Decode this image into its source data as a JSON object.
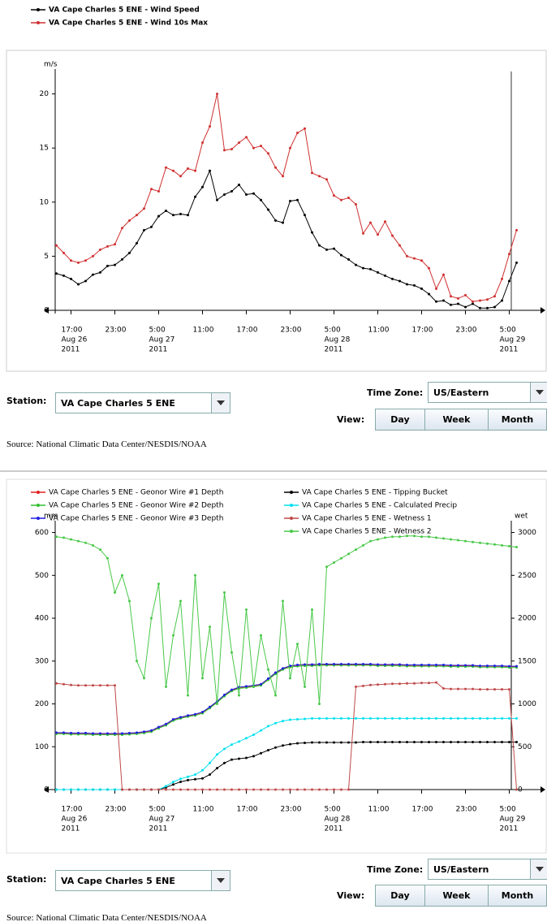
{
  "chart_data": [
    {
      "type": "line",
      "ylabel": "m/s",
      "x": [
        "2011-08-26T15:00",
        "2011-08-26T16:00",
        "2011-08-26T17:00",
        "2011-08-26T18:00",
        "2011-08-26T19:00",
        "2011-08-26T20:00",
        "2011-08-26T21:00",
        "2011-08-26T22:00",
        "2011-08-26T23:00",
        "2011-08-27T00:00",
        "2011-08-27T01:00",
        "2011-08-27T02:00",
        "2011-08-27T03:00",
        "2011-08-27T04:00",
        "2011-08-27T05:00",
        "2011-08-27T06:00",
        "2011-08-27T07:00",
        "2011-08-27T08:00",
        "2011-08-27T09:00",
        "2011-08-27T10:00",
        "2011-08-27T11:00",
        "2011-08-27T12:00",
        "2011-08-27T13:00",
        "2011-08-27T14:00",
        "2011-08-27T15:00",
        "2011-08-27T16:00",
        "2011-08-27T17:00",
        "2011-08-27T18:00",
        "2011-08-27T19:00",
        "2011-08-27T20:00",
        "2011-08-27T21:00",
        "2011-08-27T22:00",
        "2011-08-27T23:00",
        "2011-08-28T00:00",
        "2011-08-28T01:00",
        "2011-08-28T02:00",
        "2011-08-28T03:00",
        "2011-08-28T04:00",
        "2011-08-28T05:00",
        "2011-08-28T06:00",
        "2011-08-28T07:00",
        "2011-08-28T08:00",
        "2011-08-28T09:00",
        "2011-08-28T10:00",
        "2011-08-28T11:00",
        "2011-08-28T12:00",
        "2011-08-28T13:00",
        "2011-08-28T14:00",
        "2011-08-28T15:00",
        "2011-08-28T16:00",
        "2011-08-28T17:00",
        "2011-08-28T18:00",
        "2011-08-28T19:00",
        "2011-08-28T20:00",
        "2011-08-28T21:00",
        "2011-08-28T22:00",
        "2011-08-28T23:00",
        "2011-08-29T00:00",
        "2011-08-29T01:00",
        "2011-08-29T02:00",
        "2011-08-29T03:00",
        "2011-08-29T04:00",
        "2011-08-29T05:00",
        "2011-08-29T06:00"
      ],
      "series": [
        {
          "name": "VA Cape Charles 5 ENE - Wind Speed",
          "color": "#000000",
          "values": [
            3.4,
            3.2,
            2.9,
            2.4,
            2.7,
            3.3,
            3.5,
            4.1,
            4.2,
            4.7,
            5.3,
            6.2,
            7.4,
            7.7,
            8.7,
            9.2,
            8.8,
            8.9,
            8.8,
            10.5,
            11.4,
            12.9,
            10.2,
            10.7,
            11.0,
            11.6,
            10.7,
            10.8,
            10.2,
            9.3,
            8.3,
            8.1,
            10.1,
            10.2,
            8.8,
            7.2,
            6.0,
            5.6,
            5.7,
            5.1,
            4.7,
            4.2,
            3.9,
            3.8,
            3.5,
            3.2,
            2.9,
            2.7,
            2.4,
            2.3,
            2.0,
            1.5,
            0.8,
            0.9,
            0.5,
            0.6,
            0.3,
            0.6,
            0.2,
            0.2,
            0.3,
            0.9,
            2.7,
            4.4
          ]
        },
        {
          "name": "VA Cape Charles 5 ENE - Wind 10s Max",
          "color": "#d03030",
          "values": [
            6.0,
            5.3,
            4.6,
            4.4,
            4.6,
            5.0,
            5.6,
            5.9,
            6.1,
            7.6,
            8.3,
            8.8,
            9.4,
            11.2,
            11.0,
            13.2,
            12.9,
            12.4,
            13.1,
            12.9,
            15.5,
            17.0,
            20.0,
            14.8,
            14.9,
            15.5,
            16.0,
            15.0,
            15.2,
            14.5,
            13.2,
            12.4,
            15.0,
            16.4,
            16.8,
            12.7,
            12.4,
            12.1,
            10.6,
            10.2,
            10.4,
            9.8,
            7.1,
            8.1,
            7.0,
            8.2,
            6.9,
            6.0,
            5.0,
            4.8,
            4.6,
            3.9,
            2.0,
            3.3,
            1.3,
            1.1,
            1.4,
            0.8,
            0.9,
            1.0,
            1.3,
            2.9,
            5.2,
            7.4
          ]
        }
      ],
      "xlim": [
        "2011-08-26T14:50",
        "2011-08-29T09:30"
      ],
      "xticks": [
        {
          "value": "2011-08-26T17:00",
          "label": [
            "17:00",
            "Aug 26",
            "2011"
          ]
        },
        {
          "value": "2011-08-26T23:00",
          "label": [
            "23:00"
          ]
        },
        {
          "value": "2011-08-27T05:00",
          "label": [
            "5:00",
            "Aug 27",
            "2011"
          ]
        },
        {
          "value": "2011-08-27T11:00",
          "label": [
            "11:00"
          ]
        },
        {
          "value": "2011-08-27T17:00",
          "label": [
            "17:00"
          ]
        },
        {
          "value": "2011-08-27T23:00",
          "label": [
            "23:00"
          ]
        },
        {
          "value": "2011-08-28T05:00",
          "label": [
            "5:00",
            "Aug 28",
            "2011"
          ]
        },
        {
          "value": "2011-08-28T11:00",
          "label": [
            "11:00"
          ]
        },
        {
          "value": "2011-08-28T17:00",
          "label": [
            "17:00"
          ]
        },
        {
          "value": "2011-08-28T23:00",
          "label": [
            "23:00"
          ]
        },
        {
          "value": "2011-08-29T05:00",
          "label": [
            "5:00",
            "Aug 29",
            "2011"
          ]
        }
      ],
      "ylim": [
        0,
        22
      ],
      "yticks": [
        0,
        5,
        10,
        15,
        20
      ]
    },
    {
      "type": "line",
      "ylabel": "mm",
      "y2label": "wet",
      "x": [
        "2011-08-26T15:00",
        "2011-08-26T16:00",
        "2011-08-26T17:00",
        "2011-08-26T18:00",
        "2011-08-26T19:00",
        "2011-08-26T20:00",
        "2011-08-26T21:00",
        "2011-08-26T22:00",
        "2011-08-26T23:00",
        "2011-08-27T00:00",
        "2011-08-27T01:00",
        "2011-08-27T02:00",
        "2011-08-27T03:00",
        "2011-08-27T04:00",
        "2011-08-27T05:00",
        "2011-08-27T06:00",
        "2011-08-27T07:00",
        "2011-08-27T08:00",
        "2011-08-27T09:00",
        "2011-08-27T10:00",
        "2011-08-27T11:00",
        "2011-08-27T12:00",
        "2011-08-27T13:00",
        "2011-08-27T14:00",
        "2011-08-27T15:00",
        "2011-08-27T16:00",
        "2011-08-27T17:00",
        "2011-08-27T18:00",
        "2011-08-27T19:00",
        "2011-08-27T20:00",
        "2011-08-27T21:00",
        "2011-08-27T22:00",
        "2011-08-27T23:00",
        "2011-08-28T00:00",
        "2011-08-28T01:00",
        "2011-08-28T02:00",
        "2011-08-28T03:00",
        "2011-08-28T04:00",
        "2011-08-28T05:00",
        "2011-08-28T06:00",
        "2011-08-28T07:00",
        "2011-08-28T08:00",
        "2011-08-28T09:00",
        "2011-08-28T10:00",
        "2011-08-28T11:00",
        "2011-08-28T12:00",
        "2011-08-28T13:00",
        "2011-08-28T14:00",
        "2011-08-28T15:00",
        "2011-08-28T16:00",
        "2011-08-28T17:00",
        "2011-08-28T18:00",
        "2011-08-28T19:00",
        "2011-08-28T20:00",
        "2011-08-28T21:00",
        "2011-08-28T22:00",
        "2011-08-28T23:00",
        "2011-08-29T00:00",
        "2011-08-29T01:00",
        "2011-08-29T02:00",
        "2011-08-29T03:00",
        "2011-08-29T04:00",
        "2011-08-29T05:00",
        "2011-08-29T06:00"
      ],
      "series": [
        {
          "name": "VA Cape Charles 5 ENE - Geonor Wire #1 Depth",
          "color": "#e02020",
          "values": [
            132,
            132,
            131,
            131,
            131,
            130,
            130,
            130,
            130,
            130,
            131,
            132,
            134,
            137,
            145,
            152,
            163,
            168,
            172,
            175,
            180,
            192,
            205,
            220,
            232,
            238,
            240,
            242,
            245,
            258,
            272,
            282,
            288,
            290,
            291,
            291,
            292,
            292,
            292,
            292,
            292,
            292,
            292,
            292,
            291,
            291,
            291,
            291,
            290,
            290,
            290,
            290,
            290,
            290,
            289,
            289,
            289,
            289,
            288,
            288,
            288,
            288,
            287,
            287
          ]
        },
        {
          "name": "VA Cape Charles 5 ENE - Geonor Wire #2 Depth",
          "color": "#30c030",
          "values": [
            130,
            130,
            129,
            129,
            129,
            128,
            128,
            128,
            128,
            128,
            129,
            130,
            132,
            135,
            143,
            150,
            161,
            166,
            170,
            173,
            178,
            190,
            203,
            218,
            230,
            236,
            238,
            240,
            243,
            256,
            270,
            280,
            286,
            288,
            289,
            289,
            290,
            290,
            290,
            290,
            290,
            290,
            290,
            290,
            289,
            289,
            289,
            289,
            288,
            288,
            288,
            288,
            288,
            288,
            287,
            287,
            287,
            287,
            286,
            286,
            286,
            286,
            285,
            285
          ]
        },
        {
          "name": "VA Cape Charles 5 ENE - Geonor Wire #3 Depth",
          "color": "#2020e0",
          "values": [
            133,
            133,
            132,
            132,
            132,
            131,
            131,
            131,
            131,
            131,
            132,
            133,
            135,
            138,
            146,
            153,
            164,
            169,
            173,
            176,
            181,
            193,
            206,
            221,
            233,
            239,
            241,
            243,
            246,
            259,
            273,
            283,
            289,
            291,
            292,
            292,
            293,
            293,
            293,
            293,
            293,
            293,
            293,
            293,
            292,
            292,
            292,
            292,
            291,
            291,
            291,
            291,
            291,
            291,
            290,
            290,
            290,
            290,
            289,
            289,
            289,
            289,
            288,
            288
          ]
        },
        {
          "name": "VA Cape Charles 5 ENE - Tipping Bucket",
          "color": "#000000",
          "values": [
            0,
            0,
            0,
            0,
            0,
            0,
            0,
            0,
            0,
            0,
            0,
            0,
            0,
            0,
            0,
            5,
            12,
            18,
            22,
            24,
            26,
            35,
            50,
            62,
            70,
            72,
            74,
            78,
            85,
            92,
            98,
            103,
            106,
            108,
            109,
            110,
            110,
            110,
            110,
            110,
            110,
            110,
            111,
            111,
            111,
            111,
            111,
            111,
            111,
            111,
            111,
            111,
            111,
            111,
            111,
            111,
            111,
            111,
            111,
            111,
            111,
            111,
            111,
            111
          ]
        },
        {
          "name": "VA Cape Charles 5 ENE - Calculated Precip",
          "color": "#00e0f0",
          "values": [
            0,
            0,
            0,
            0,
            0,
            0,
            0,
            0,
            0,
            0,
            0,
            0,
            0,
            0,
            0,
            8,
            18,
            25,
            30,
            35,
            45,
            62,
            82,
            95,
            105,
            112,
            120,
            128,
            138,
            148,
            155,
            160,
            163,
            164,
            165,
            166,
            166,
            166,
            166,
            166,
            166,
            166,
            166,
            166,
            166,
            166,
            166,
            166,
            166,
            166,
            166,
            166,
            166,
            166,
            166,
            166,
            166,
            166,
            166,
            166,
            166,
            166,
            166,
            166
          ]
        },
        {
          "name": "VA Cape Charles 5 ENE - Wetness 1",
          "color": "#c04848",
          "axis": "y2",
          "values": [
            1240,
            1230,
            1220,
            1215,
            1215,
            1215,
            1215,
            1215,
            1215,
            0,
            0,
            0,
            0,
            0,
            0,
            0,
            0,
            0,
            0,
            0,
            0,
            0,
            0,
            0,
            0,
            0,
            0,
            0,
            0,
            0,
            0,
            0,
            0,
            0,
            0,
            0,
            0,
            0,
            0,
            0,
            0,
            1200,
            1210,
            1220,
            1225,
            1230,
            1235,
            1235,
            1240,
            1240,
            1245,
            1245,
            1250,
            1180,
            1175,
            1175,
            1175,
            1175,
            1170,
            1170,
            1170,
            1170,
            1170,
            0
          ]
        },
        {
          "name": "VA Cape Charles 5 ENE - Wetness 2",
          "color": "#48c848",
          "axis": "y2",
          "values": [
            2950,
            2940,
            2920,
            2900,
            2880,
            2850,
            2800,
            2700,
            2300,
            2500,
            2200,
            1500,
            1300,
            2000,
            2400,
            1200,
            1800,
            2200,
            1100,
            2500,
            1300,
            1900,
            1000,
            2300,
            1600,
            1100,
            2100,
            1200,
            1800,
            1400,
            1100,
            2200,
            1300,
            1700,
            1200,
            2100,
            1000,
            2600,
            2650,
            2700,
            2750,
            2800,
            2850,
            2900,
            2920,
            2940,
            2950,
            2950,
            2960,
            2960,
            2950,
            2950,
            2940,
            2930,
            2920,
            2910,
            2900,
            2890,
            2880,
            2870,
            2860,
            2850,
            2840,
            2830
          ]
        }
      ],
      "xlim": [
        "2011-08-26T14:50",
        "2011-08-29T09:30"
      ],
      "xticks": [
        {
          "value": "2011-08-26T17:00",
          "label": [
            "17:00",
            "Aug 26",
            "2011"
          ]
        },
        {
          "value": "2011-08-26T23:00",
          "label": [
            "23:00"
          ]
        },
        {
          "value": "2011-08-27T05:00",
          "label": [
            "5:00",
            "Aug 27",
            "2011"
          ]
        },
        {
          "value": "2011-08-27T11:00",
          "label": [
            "11:00"
          ]
        },
        {
          "value": "2011-08-27T17:00",
          "label": [
            "17:00"
          ]
        },
        {
          "value": "2011-08-27T23:00",
          "label": [
            "23:00"
          ]
        },
        {
          "value": "2011-08-28T05:00",
          "label": [
            "5:00",
            "Aug 28",
            "2011"
          ]
        },
        {
          "value": "2011-08-28T11:00",
          "label": [
            "11:00"
          ]
        },
        {
          "value": "2011-08-28T17:00",
          "label": [
            "17:00"
          ]
        },
        {
          "value": "2011-08-28T23:00",
          "label": [
            "23:00"
          ]
        },
        {
          "value": "2011-08-29T05:00",
          "label": [
            "5:00",
            "Aug 29",
            "2011"
          ]
        }
      ],
      "ylim": [
        0,
        620
      ],
      "yticks": [
        0,
        100,
        200,
        300,
        400,
        500,
        600
      ],
      "y2lim": [
        0,
        3100
      ],
      "y2ticks": [
        0,
        500,
        1000,
        1500,
        2000,
        2500,
        3000
      ]
    }
  ],
  "controls": [
    {
      "station_label": "Station:",
      "station": "VA Cape Charles 5 ENE",
      "timezone_label": "Time Zone:",
      "timezone": "US/Eastern",
      "view_label": "View:",
      "views": [
        "Day",
        "Week",
        "Month"
      ],
      "source": "Source: National Climatic Data Center/NESDIS/NOAA"
    },
    {
      "station_label": "Station:",
      "station": "VA Cape Charles 5 ENE",
      "timezone_label": "Time Zone:",
      "timezone": "US/Eastern",
      "view_label": "View:",
      "views": [
        "Day",
        "Week",
        "Month"
      ],
      "source": "Source: National Climatic Data Center/NESDIS/NOAA"
    }
  ]
}
